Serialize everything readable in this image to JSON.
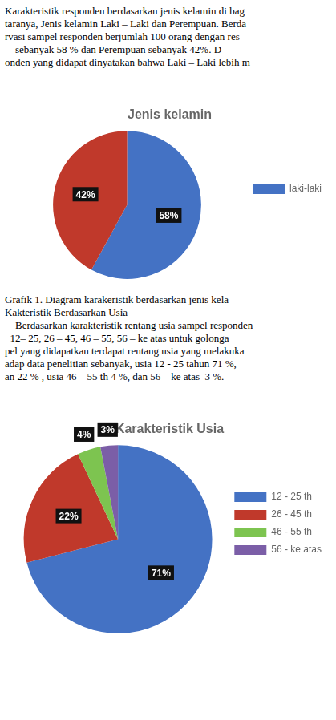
{
  "chart_data": [
    {
      "type": "pie",
      "title": "Jenis kelamin",
      "annotations": [
        "Karakteristik responden berdasarkan jenis kelamin di bag",
        "taranya, Jenis kelamin Laki – Laki dan Perempuan. Berda",
        "rvasi sampel responden berjumlah 100 orang dengan res",
        "    sebanyak 58 % dan Perempuan sebanyak 42%. D",
        "onden yang didapat dinyatakan bahwa Laki – Laki lebih m"
      ],
      "categories": [
        "laki-laki",
        null
      ],
      "values": [
        58,
        42
      ],
      "value_labels": [
        "58%",
        "42%"
      ],
      "colors": [
        "#4472C4",
        "#C0392B"
      ],
      "data_labels": true,
      "legend": "right"
    },
    {
      "type": "pie",
      "title": "Karakteristik Usia",
      "annotations": [
        "Grafik 1. Diagram karakeristik berdasarkan jenis kela",
        "Kakteristik Berdasarkan Usia",
        "    Berdasarkan karakteristik rentang usia sampel responden",
        "  12– 25, 26 – 45, 46 – 55, 56 – ke atas untuk golonga",
        "pel yang didapatkan terdapat rentang usia yang melakuka",
        "adap data penelitian sebanyak, usia 12 - 25 tahun 71 %,",
        "an 22 % , usia 46 – 55 th 4 %, dan 56 – ke atas  3 %."
      ],
      "categories": [
        "12 - 25 th",
        "26 - 45 th",
        "46 - 55 th",
        "56 - ke atas"
      ],
      "values": [
        71,
        22,
        4,
        3
      ],
      "value_labels": [
        "71%",
        "22%",
        "4%",
        "3%"
      ],
      "colors": [
        "#4472C4",
        "#C0392B",
        "#7DC450",
        "#7B5EA7"
      ],
      "data_labels": true,
      "legend": "right"
    }
  ]
}
